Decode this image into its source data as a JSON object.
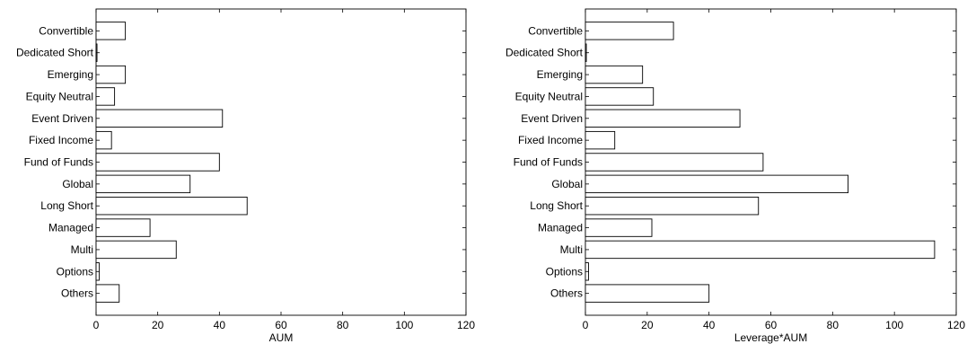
{
  "chart_data": [
    {
      "type": "bar",
      "orientation": "horizontal",
      "categories": [
        "Convertible",
        "Dedicated Short",
        "Emerging",
        "Equity Neutral",
        "Event Driven",
        "Fixed Income",
        "Fund of Funds",
        "Global",
        "Long Short",
        "Managed",
        "Multi",
        "Options",
        "Others"
      ],
      "values": [
        9.5,
        0.3,
        9.5,
        6,
        41,
        5,
        40,
        30.5,
        49,
        17.5,
        26,
        1,
        7.5
      ],
      "xlabel": "AUM",
      "xlim": [
        0,
        120
      ],
      "xticks": [
        "0",
        "20",
        "40",
        "60",
        "80",
        "100",
        "120"
      ],
      "grid": false
    },
    {
      "type": "bar",
      "orientation": "horizontal",
      "categories": [
        "Convertible",
        "Dedicated Short",
        "Emerging",
        "Equity Neutral",
        "Event Driven",
        "Fixed Income",
        "Fund of Funds",
        "Global",
        "Long Short",
        "Managed",
        "Multi",
        "Options",
        "Others"
      ],
      "values": [
        28.5,
        0.3,
        18.5,
        22,
        50,
        9.5,
        57.5,
        85,
        56,
        21.5,
        113,
        1,
        40
      ],
      "xlabel": "Leverage*AUM",
      "xlim": [
        0,
        120
      ],
      "xticks": [
        "0",
        "20",
        "40",
        "60",
        "80",
        "100",
        "120"
      ],
      "grid": false
    }
  ]
}
